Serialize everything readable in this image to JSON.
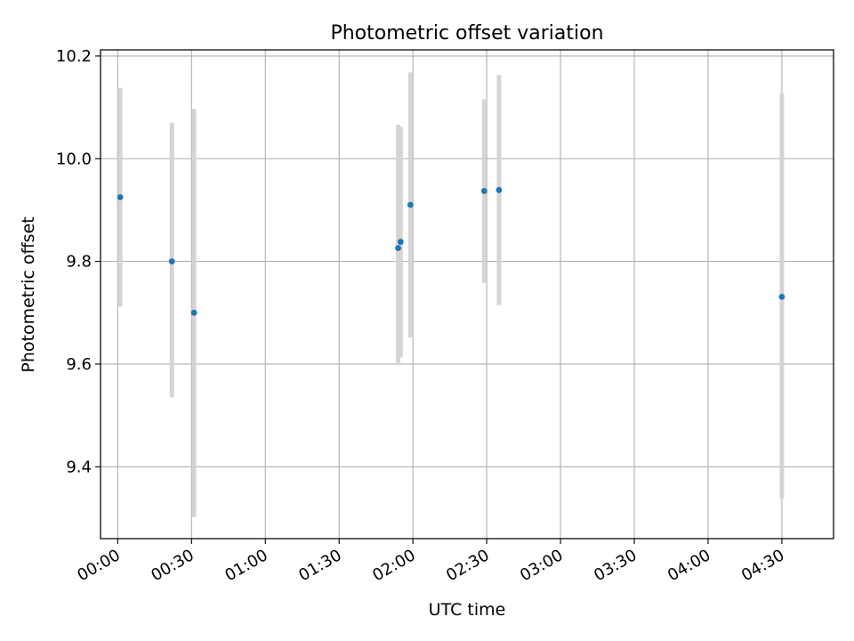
{
  "chart_data": {
    "type": "scatter",
    "title": "Photometric offset variation",
    "xlabel": "UTC time",
    "ylabel": "Photometric offset",
    "grid": true,
    "legend": "none",
    "x_ticks": [
      "00:00",
      "00:30",
      "01:00",
      "01:30",
      "02:00",
      "02:30",
      "03:00",
      "03:30",
      "04:00",
      "04:30"
    ],
    "y_ticks": [
      9.4,
      9.6,
      9.8,
      10.0,
      10.2
    ],
    "xlim": [
      "23:53",
      "04:51"
    ],
    "ylim": [
      9.26,
      10.212
    ],
    "series": [
      {
        "marker_color": "#1f77b4",
        "errorbar_color": "#d3d3d3",
        "points": [
          {
            "x": "00:01",
            "y": 9.925,
            "err_low": 9.712,
            "err_high": 10.138
          },
          {
            "x": "00:22",
            "y": 9.8,
            "err_low": 9.535,
            "err_high": 10.07
          },
          {
            "x": "00:31",
            "y": 9.7,
            "err_low": 9.302,
            "err_high": 10.097
          },
          {
            "x": "01:54",
            "y": 9.826,
            "err_low": 9.602,
            "err_high": 10.066
          },
          {
            "x": "01:55",
            "y": 9.838,
            "err_low": 9.613,
            "err_high": 10.062
          },
          {
            "x": "01:59",
            "y": 9.91,
            "err_low": 9.652,
            "err_high": 10.168
          },
          {
            "x": "02:29",
            "y": 9.937,
            "err_low": 9.758,
            "err_high": 10.116
          },
          {
            "x": "02:35",
            "y": 9.939,
            "err_low": 9.715,
            "err_high": 10.163
          },
          {
            "x": "04:30",
            "y": 9.731,
            "err_low": 9.338,
            "err_high": 10.127
          }
        ]
      }
    ]
  }
}
